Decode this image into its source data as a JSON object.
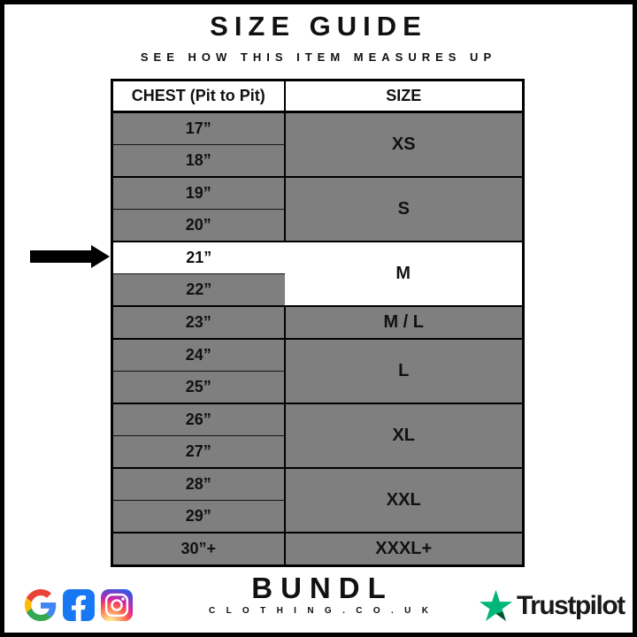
{
  "header": {
    "title": "SIZE GUIDE",
    "subtitle": "SEE HOW THIS ITEM MEASURES UP"
  },
  "table": {
    "chest_header": "CHEST (Pit to Pit)",
    "size_header": "SIZE",
    "groups": [
      {
        "size": "XS",
        "measurements": [
          "17”",
          "18”"
        ],
        "highlighted": false
      },
      {
        "size": "S",
        "measurements": [
          "19”",
          "20”"
        ],
        "highlighted": false
      },
      {
        "size": "M",
        "measurements": [
          "21”",
          "22”"
        ],
        "highlighted": true,
        "highlighted_measurement": "21”"
      },
      {
        "size": "M / L",
        "measurements": [
          "23”"
        ],
        "highlighted": false
      },
      {
        "size": "L",
        "measurements": [
          "24”",
          "25”"
        ],
        "highlighted": false
      },
      {
        "size": "XL",
        "measurements": [
          "26”",
          "27”"
        ],
        "highlighted": false
      },
      {
        "size": "XXL",
        "measurements": [
          "28”",
          "29”"
        ],
        "highlighted": false
      },
      {
        "size": "XXXL+",
        "measurements": [
          "30”+"
        ],
        "highlighted": false
      }
    ],
    "indicator_arrow_points_to": "21”"
  },
  "footer": {
    "brand_name": "BUNDL",
    "brand_domain": "C L O T H I N G . C O . U K",
    "social_icons": [
      "google-icon",
      "facebook-icon",
      "instagram-icon"
    ],
    "trustpilot_label": "Trustpilot"
  },
  "colors": {
    "cell_grey": "#7f7f7f",
    "highlight_white": "#ffffff",
    "border_black": "#000000",
    "facebook_blue": "#1877f2",
    "trustpilot_green": "#00b67a",
    "trustpilot_dark_green": "#005128",
    "google_blue": "#4285f4",
    "google_green": "#34a853",
    "google_yellow": "#fbbc05",
    "google_red": "#ea4335"
  }
}
